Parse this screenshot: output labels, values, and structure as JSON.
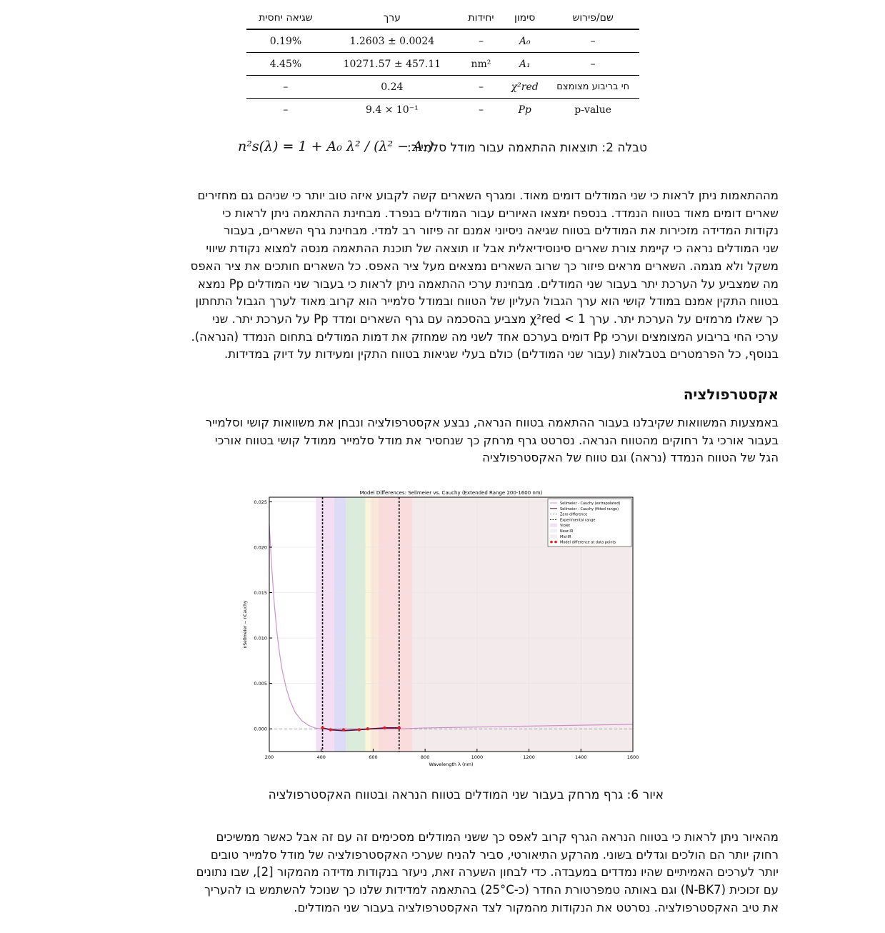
{
  "table": {
    "headers": [
      "שגיאה יחסית",
      "ערך",
      "יחידות",
      "סימון",
      "שם/פירוש"
    ],
    "rows": [
      {
        "rel": "0.19%",
        "value": "1.2603 ± 0.0024",
        "units": "–",
        "symbol": "A₀",
        "name": "–"
      },
      {
        "rel": "4.45%",
        "value": "10271.57 ± 457.11",
        "units": "nm²",
        "symbol": "A₁",
        "name": "–"
      },
      {
        "rel": "–",
        "value": "0.24",
        "units": "–",
        "symbol": "χ²red",
        "name": "חי בריבוע מצומצם"
      },
      {
        "rel": "–",
        "value": "9.4 × 10⁻¹",
        "units": "–",
        "symbol": "Pp",
        "name": "p-value"
      }
    ],
    "caption": "טבלה 2: תוצאות ההתאמה עבור מודל סלמייר:",
    "formula": "n²s(λ) = 1 + A₀ λ² / (λ² − A₁)"
  },
  "paragraph1": [
    "מההתאמות ניתן לראות כי שני המודלים דומים מאוד. ומגרף השארים קשה לקבוע איזה טוב יותר כי שניהם גם מחזירים",
    "שארים דומים מאוד בטווח הנמדד. בנספח ימצאו האיורים עבור המודלים בנפרד. מבחינת ההתאמה ניתן לראות כי",
    "נקודות המדידה מזכירות את המודלים בטווח שגיאה ניסיוני אמנם זה פיזור רב למדי. מבחינת גרף השארים, בעבור",
    "שני המודלים נראה כי קיימת צורת שארים סינוסידיאלית אבל זו תוצאה של תוכנת ההתאמה מנסה למצוא נקודת שיווי",
    "משקל ולא מגמה. השארים מראים פיזור כך שרוב השארים נמצאים מעל ציר האפס. כל השארים חותכים את ציר האפס",
    "מה שמצביע על הערכת יתר בעבור שני המודלים. מבחינת ערכי ההתאמה ניתן לראות כי בעבור שני המודלים Pp נמצא",
    "בטווח התקין אמנם במודל קושי הוא ערך הגבול העליון של הטווח ובמודל סלמייר הוא קרוב מאוד לערך הגבול התחתון",
    "כך שאלו מרמזים על הערכת יתר. ערך χ²red < 1 מצביע בהסכמה עם גרף השארים ומדד Pp על הערכת יתר. שני",
    "ערכי החי בריבוע המצומצים וערכי Pp דומים בערכם אחד לשני מה שמחזק את דמות המודלים בתחום הנמדד (הנראה).",
    "בנוסף, כל הפרמטרים בטבלאות (עבור שני המודלים) כולם בעלי שגיאות בטווח התקין ומעידות על דיוק במדידות."
  ],
  "section_title": "אקסטרפולציה",
  "paragraph2": [
    "באמצעות המשוואות שקיבלנו בעבור ההתאמה בטווח הנראה, נבצע אקסטרפולציה ונבחן את משוואות קושי וסלמייר",
    "בעבור אורכי גל רחוקים מהטווח הנראה. נסרטט גרף מרחק כך שנחסיר את מודל סלמייר ממודל קושי בטווח אורכי",
    "הגל של הטווח הנמדד (נראה) וגם טווח של האקסטרפולציה"
  ],
  "chart_data": {
    "type": "line",
    "title": "Model Differences: Sellmeier vs. Cauchy (Extended Range 200-1600 nm)",
    "xlabel": "Wavelength λ (nm)",
    "ylabel": "nSellmeier − nCauchy",
    "xlim": [
      200,
      1600
    ],
    "ylim": [
      -0.0025,
      0.0255
    ],
    "xticks": [
      200,
      400,
      600,
      800,
      1000,
      1200,
      1400,
      1600
    ],
    "yticks": [
      0.0,
      0.005,
      0.01,
      0.015,
      0.02,
      0.025
    ],
    "ytick_labels": [
      "0.000",
      "0.005",
      "0.010",
      "0.015",
      "0.020",
      "0.025"
    ],
    "grid": true,
    "legend_position": "top-right",
    "legend": [
      "Sellmeier - Cauchy (extrapolated)",
      "Sellmeier - Cauchy (fitted range)",
      "Zero difference",
      "Experimental range",
      "Violet",
      "Near-IR",
      "Mid-IR",
      "Model difference at data points"
    ],
    "bands": [
      {
        "name": "violet",
        "from": 380,
        "to": 450,
        "color": "#f3dff3"
      },
      {
        "name": "blue",
        "from": 450,
        "to": 495,
        "color": "#dcdcf6"
      },
      {
        "name": "green",
        "from": 495,
        "to": 570,
        "color": "#dcecdc"
      },
      {
        "name": "yellow",
        "from": 570,
        "to": 590,
        "color": "#fbf6d8"
      },
      {
        "name": "orange",
        "from": 590,
        "to": 620,
        "color": "#fbe8d8"
      },
      {
        "name": "red",
        "from": 620,
        "to": 750,
        "color": "#fbdcdc"
      },
      {
        "name": "near-ir",
        "from": 750,
        "to": 1600,
        "color": "#f3ebeb"
      }
    ],
    "experimental_range": [
      405,
      700
    ],
    "extrapolated": [
      {
        "x": 200,
        "y": 0.0225
      },
      {
        "x": 210,
        "y": 0.0175
      },
      {
        "x": 220,
        "y": 0.0135
      },
      {
        "x": 230,
        "y": 0.0105
      },
      {
        "x": 240,
        "y": 0.0082
      },
      {
        "x": 250,
        "y": 0.0064
      },
      {
        "x": 265,
        "y": 0.0045
      },
      {
        "x": 280,
        "y": 0.0031
      },
      {
        "x": 300,
        "y": 0.0018
      },
      {
        "x": 325,
        "y": 0.0009
      },
      {
        "x": 350,
        "y": 0.0004
      },
      {
        "x": 375,
        "y": 0.0001
      },
      {
        "x": 400,
        "y": 0.0
      },
      {
        "x": 700,
        "y": 0.0
      },
      {
        "x": 800,
        "y": 0.0001
      },
      {
        "x": 1000,
        "y": 0.0002
      },
      {
        "x": 1200,
        "y": 0.0003
      },
      {
        "x": 1400,
        "y": 0.0004
      },
      {
        "x": 1600,
        "y": 0.0005
      }
    ],
    "fitted": [
      {
        "x": 405,
        "y": 0.0001
      },
      {
        "x": 436,
        "y": -0.0001
      },
      {
        "x": 486,
        "y": -0.0002
      },
      {
        "x": 546,
        "y": -0.0001
      },
      {
        "x": 590,
        "y": 0.0
      },
      {
        "x": 650,
        "y": 0.0001
      },
      {
        "x": 700,
        "y": 0.0001
      }
    ],
    "data_points": [
      {
        "x": 405,
        "y": 0.0001
      },
      {
        "x": 436,
        "y": -0.0001
      },
      {
        "x": 486,
        "y": -0.0001
      },
      {
        "x": 546,
        "y": -0.0001
      },
      {
        "x": 579,
        "y": 0.0
      },
      {
        "x": 644,
        "y": 0.0001
      },
      {
        "x": 700,
        "y": 0.0001
      }
    ],
    "colors": {
      "extrapolated": "#cf8fcf",
      "fitted": "#5a0f3f",
      "points": "#e02020",
      "zero": "#888888",
      "exp": "#111111"
    }
  },
  "figure_caption": "איור 6: גרף מרחק בעבור שני המודלים בטווח הנראה ובטווח האקסטרפולציה",
  "paragraph3": [
    "מהאיור ניתן לראות כי בטווח הנראה הגרף קרוב לאפס כך ששני המודלים מסכימים זה עם זה אבל כאשר ממשיכים",
    "רחוק יותר הם הולכים וגדלים בשוני. מהרקע התיאורטי, סביר להניח שערכי האקסטרפולציה של מודל סלמייר טובים",
    "יותר לערכים האמיתיים שהיו נמדדים במעבדה. כדי לבחון השערה זאת, ניעזר בנקודות מדידה מהמקור [2], שבו נתונים",
    "עם זכוכית (N-BK7) וגם באותה טמפרטורת החדר (כ-25°C) בהתאמה למדידות שלנו כך שנוכל להשתמש בו להעריך",
    "את טיב האקסטרפולציה. נסרטט את הנקודות מהמקור לצד האקסטרפולציה בעבור שני המודלים."
  ]
}
